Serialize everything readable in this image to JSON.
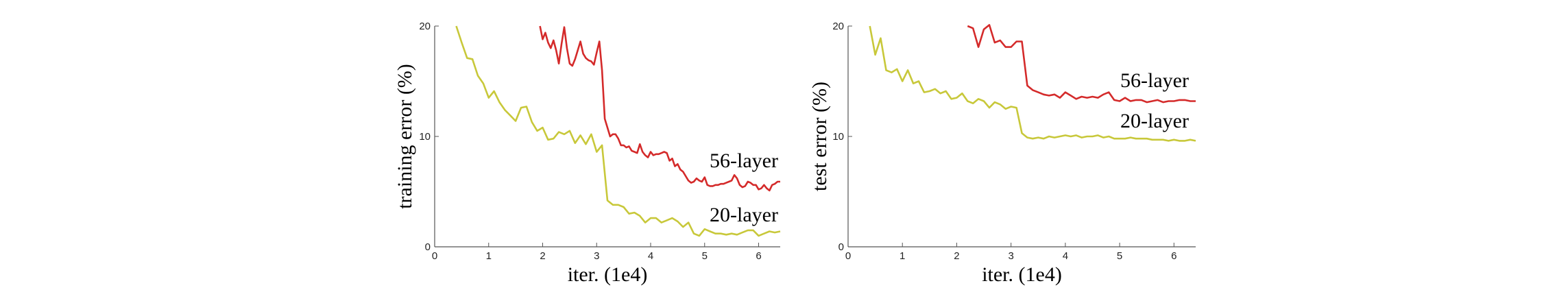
{
  "chart_data": [
    {
      "type": "line",
      "title": "",
      "xlabel": "iter. (1e4)",
      "ylabel": "training error (%)",
      "xlim": [
        0,
        6.4
      ],
      "ylim": [
        0,
        20
      ],
      "xticks": [
        0,
        1,
        2,
        3,
        4,
        5,
        6
      ],
      "yticks": [
        0,
        10,
        20
      ],
      "grid": false,
      "series": [
        {
          "name": "56-layer",
          "color": "#d42a2a",
          "x": [
            1.95,
            2.0,
            2.05,
            2.1,
            2.15,
            2.2,
            2.25,
            2.3,
            2.35,
            2.4,
            2.45,
            2.5,
            2.55,
            2.6,
            2.65,
            2.7,
            2.75,
            2.8,
            2.85,
            2.9,
            2.95,
            3.0,
            3.05,
            3.1,
            3.15,
            3.2,
            3.25,
            3.3,
            3.35,
            3.4,
            3.45,
            3.5,
            3.55,
            3.6,
            3.65,
            3.7,
            3.75,
            3.8,
            3.85,
            3.9,
            3.95,
            4.0,
            4.05,
            4.1,
            4.15,
            4.2,
            4.25,
            4.3,
            4.35,
            4.4,
            4.45,
            4.5,
            4.55,
            4.6,
            4.65,
            4.7,
            4.75,
            4.8,
            4.85,
            4.9,
            4.95,
            5.0,
            5.05,
            5.1,
            5.15,
            5.2,
            5.25,
            5.3,
            5.35,
            5.4,
            5.45,
            5.5,
            5.55,
            5.6,
            5.65,
            5.7,
            5.75,
            5.8,
            5.85,
            5.9,
            5.95,
            6.0,
            6.05,
            6.1,
            6.15,
            6.2,
            6.25,
            6.3,
            6.35,
            6.4
          ],
          "y": [
            20.0,
            18.8,
            19.4,
            18.5,
            18.0,
            18.7,
            17.8,
            16.6,
            18.4,
            19.9,
            18.0,
            16.6,
            16.4,
            17.0,
            17.8,
            18.6,
            17.5,
            17.1,
            16.9,
            16.8,
            16.5,
            17.6,
            18.6,
            16.0,
            11.6,
            10.8,
            10.0,
            10.2,
            10.2,
            9.8,
            9.2,
            9.2,
            9.0,
            9.1,
            8.7,
            8.6,
            8.5,
            9.3,
            8.6,
            8.3,
            8.1,
            8.6,
            8.3,
            8.4,
            8.4,
            8.5,
            8.6,
            8.5,
            7.8,
            8.0,
            7.3,
            7.5,
            7.0,
            6.8,
            6.4,
            6.0,
            5.8,
            5.9,
            6.2,
            6.0,
            5.9,
            6.3,
            5.6,
            5.5,
            5.5,
            5.6,
            5.6,
            5.7,
            5.7,
            5.8,
            5.9,
            6.0,
            6.5,
            6.2,
            5.6,
            5.4,
            5.5,
            5.9,
            5.8,
            5.6,
            5.6,
            5.2,
            5.3,
            5.6,
            5.3,
            5.1,
            5.6,
            5.7,
            5.9,
            5.9
          ]
        },
        {
          "name": "20-layer",
          "color": "#c8c83a",
          "x": [
            0.4,
            0.5,
            0.6,
            0.7,
            0.8,
            0.9,
            1.0,
            1.1,
            1.2,
            1.3,
            1.4,
            1.5,
            1.6,
            1.7,
            1.8,
            1.9,
            2.0,
            2.1,
            2.2,
            2.3,
            2.4,
            2.5,
            2.6,
            2.7,
            2.8,
            2.9,
            3.0,
            3.1,
            3.2,
            3.3,
            3.4,
            3.5,
            3.6,
            3.7,
            3.8,
            3.9,
            4.0,
            4.1,
            4.2,
            4.3,
            4.4,
            4.5,
            4.6,
            4.7,
            4.8,
            4.9,
            5.0,
            5.1,
            5.2,
            5.3,
            5.4,
            5.5,
            5.6,
            5.7,
            5.8,
            5.9,
            6.0,
            6.1,
            6.2,
            6.3,
            6.4
          ],
          "y": [
            20.0,
            18.5,
            17.1,
            17.0,
            15.5,
            14.8,
            13.5,
            14.1,
            13.1,
            12.4,
            11.9,
            11.4,
            12.6,
            12.7,
            11.3,
            10.5,
            10.8,
            9.7,
            9.8,
            10.4,
            10.2,
            10.5,
            9.4,
            10.1,
            9.3,
            10.2,
            8.6,
            9.2,
            4.2,
            3.8,
            3.8,
            3.6,
            3.0,
            3.1,
            2.8,
            2.2,
            2.6,
            2.6,
            2.2,
            2.4,
            2.6,
            2.3,
            1.8,
            2.2,
            1.2,
            1.0,
            1.6,
            1.4,
            1.2,
            1.2,
            1.1,
            1.2,
            1.1,
            1.3,
            1.5,
            1.5,
            1.0,
            1.2,
            1.4,
            1.3,
            1.4
          ]
        }
      ]
    },
    {
      "type": "line",
      "title": "",
      "xlabel": "iter. (1e4)",
      "ylabel": "test error (%)",
      "xlim": [
        0,
        6.4
      ],
      "ylim": [
        0,
        20
      ],
      "xticks": [
        0,
        1,
        2,
        3,
        4,
        5,
        6
      ],
      "yticks": [
        0,
        10,
        20
      ],
      "grid": false,
      "series": [
        {
          "name": "56-layer",
          "color": "#d42a2a",
          "x": [
            2.2,
            2.3,
            2.4,
            2.5,
            2.6,
            2.7,
            2.8,
            2.9,
            3.0,
            3.1,
            3.2,
            3.3,
            3.4,
            3.5,
            3.6,
            3.7,
            3.8,
            3.9,
            4.0,
            4.1,
            4.2,
            4.3,
            4.4,
            4.5,
            4.6,
            4.7,
            4.8,
            4.9,
            5.0,
            5.1,
            5.2,
            5.3,
            5.4,
            5.5,
            5.6,
            5.7,
            5.8,
            5.9,
            6.0,
            6.1,
            6.2,
            6.3,
            6.4
          ],
          "y": [
            20.0,
            19.8,
            18.1,
            19.7,
            20.1,
            18.5,
            18.7,
            18.1,
            18.1,
            18.6,
            18.6,
            14.6,
            14.2,
            14.0,
            13.8,
            13.7,
            13.8,
            13.5,
            14.0,
            13.7,
            13.4,
            13.6,
            13.5,
            13.6,
            13.5,
            13.8,
            14.0,
            13.3,
            13.2,
            13.5,
            13.2,
            13.3,
            13.3,
            13.1,
            13.2,
            13.3,
            13.1,
            13.2,
            13.2,
            13.3,
            13.3,
            13.2,
            13.2
          ]
        },
        {
          "name": "20-layer",
          "color": "#c8c83a",
          "x": [
            0.4,
            0.5,
            0.6,
            0.7,
            0.8,
            0.9,
            1.0,
            1.1,
            1.2,
            1.3,
            1.4,
            1.5,
            1.6,
            1.7,
            1.8,
            1.9,
            2.0,
            2.1,
            2.2,
            2.3,
            2.4,
            2.5,
            2.6,
            2.7,
            2.8,
            2.9,
            3.0,
            3.1,
            3.2,
            3.3,
            3.4,
            3.5,
            3.6,
            3.7,
            3.8,
            3.9,
            4.0,
            4.1,
            4.2,
            4.3,
            4.4,
            4.5,
            4.6,
            4.7,
            4.8,
            4.9,
            5.0,
            5.1,
            5.2,
            5.3,
            5.4,
            5.5,
            5.6,
            5.7,
            5.8,
            5.9,
            6.0,
            6.1,
            6.2,
            6.3,
            6.4
          ],
          "y": [
            20.0,
            17.4,
            18.9,
            16.0,
            15.8,
            16.1,
            15.0,
            16.0,
            14.8,
            15.0,
            14.0,
            14.1,
            14.3,
            13.9,
            14.1,
            13.4,
            13.5,
            13.9,
            13.2,
            13.0,
            13.4,
            13.2,
            12.6,
            13.1,
            12.9,
            12.5,
            12.7,
            12.6,
            10.3,
            9.9,
            9.8,
            9.9,
            9.8,
            10.0,
            9.9,
            10.0,
            10.1,
            10.0,
            10.1,
            9.9,
            10.0,
            10.0,
            10.1,
            9.9,
            10.0,
            9.8,
            9.8,
            9.8,
            9.9,
            9.8,
            9.8,
            9.8,
            9.7,
            9.7,
            9.7,
            9.6,
            9.7,
            9.6,
            9.6,
            9.7,
            9.6
          ]
        }
      ]
    }
  ]
}
